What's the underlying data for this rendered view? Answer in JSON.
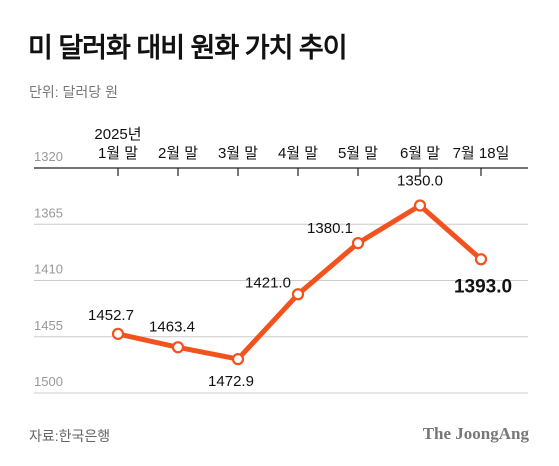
{
  "title": "미 달러화 대비 원화 가치 추이",
  "unit_label": "단위: 달러당 원",
  "source": "자료:한국은행",
  "brand": "The JoongAng",
  "colors": {
    "line": "#f2531e",
    "grid": "#cccccc",
    "axis": "#222222"
  },
  "chart_data": {
    "type": "line",
    "title": "미 달러화 대비 원화 가치 추이",
    "ylabel": "단위: 달러당 원",
    "y_inverted": true,
    "ylim": [
      1500,
      1320
    ],
    "yticks": [
      "1320",
      "1365",
      "1410",
      "1455",
      "1500"
    ],
    "year_label": "2025년",
    "categories": [
      "1월 말",
      "2월 말",
      "3월 말",
      "4월 말",
      "5월 말",
      "6월 말",
      "7월 18일"
    ],
    "values": [
      1452.7,
      1463.4,
      1472.9,
      1421.0,
      1380.1,
      1350.0,
      1393.0
    ],
    "value_labels": [
      "1452.7",
      "1463.4",
      "1472.9",
      "1421.0",
      "1380.1",
      "1350.0",
      "1393.0"
    ],
    "grid": true
  }
}
